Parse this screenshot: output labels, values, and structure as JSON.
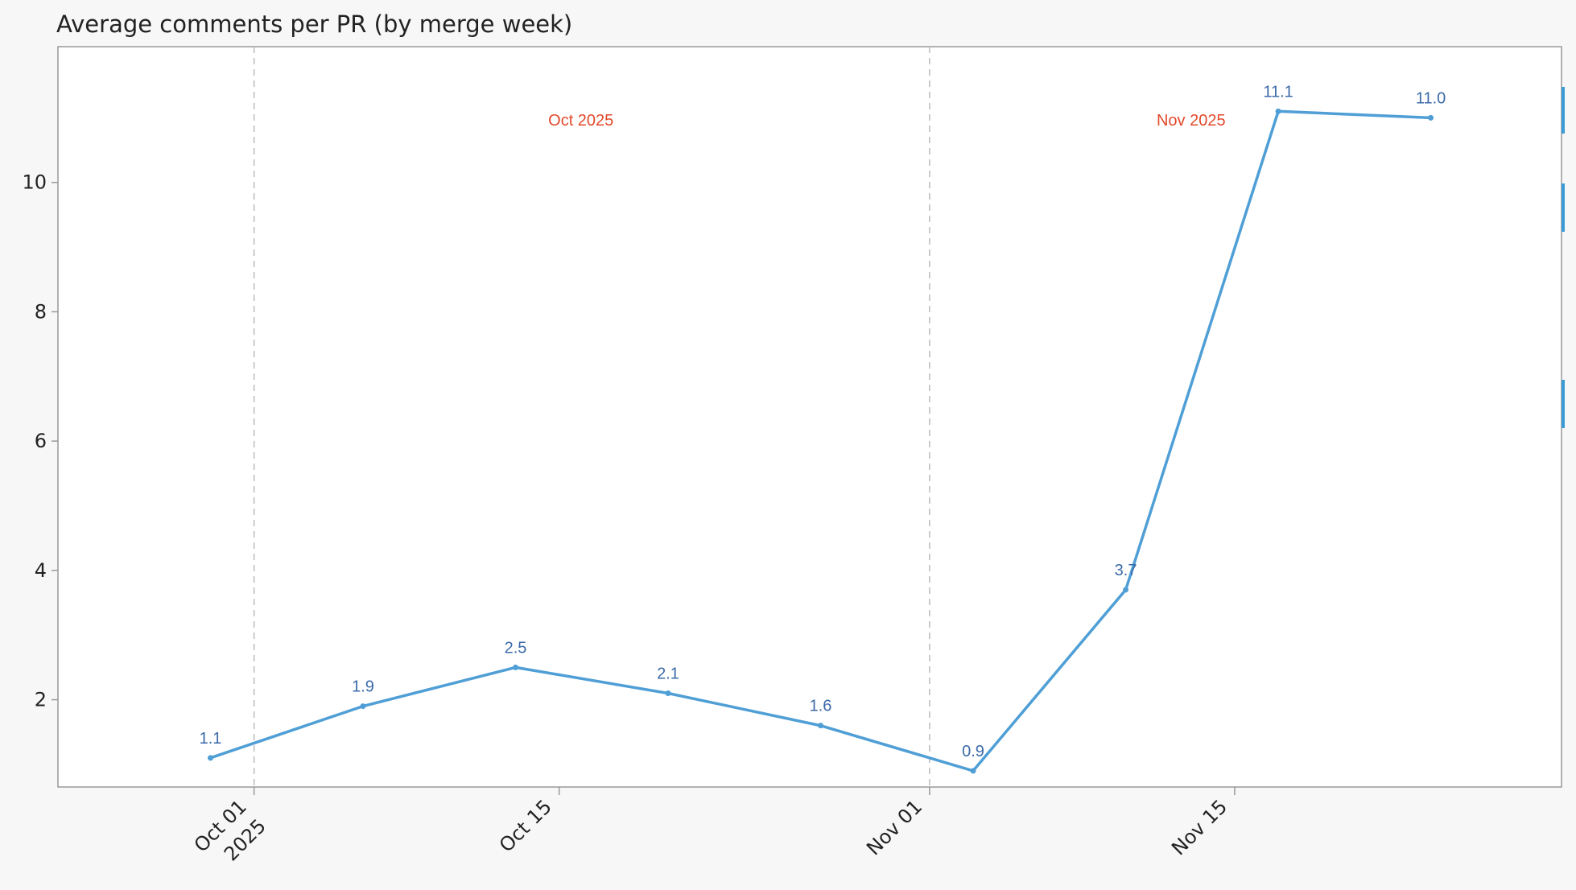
{
  "chart_data": {
    "type": "line",
    "title": "Average comments per PR (by merge week)",
    "xlabel": "",
    "ylabel": "",
    "x_type": "date",
    "xlim": [
      "2025-09-22",
      "2025-11-30"
    ],
    "ylim": [
      0.65,
      12.1
    ],
    "yticks": [
      2,
      4,
      6,
      8,
      10
    ],
    "xticks": [
      {
        "date": "2025-10-01",
        "label": "Oct 01",
        "sublabel": "2025"
      },
      {
        "date": "2025-10-15",
        "label": "Oct 15",
        "sublabel": ""
      },
      {
        "date": "2025-11-01",
        "label": "Nov 01",
        "sublabel": ""
      },
      {
        "date": "2025-11-15",
        "label": "Nov 15",
        "sublabel": ""
      }
    ],
    "month_boundaries": [
      "2025-10-01",
      "2025-11-01"
    ],
    "month_labels": [
      {
        "text": "Oct 2025",
        "date": "2025-10-16"
      },
      {
        "text": "Nov 2025",
        "date": "2025-11-13"
      }
    ],
    "series": [
      {
        "name": "",
        "x": [
          "2025-09-29",
          "2025-10-06",
          "2025-10-13",
          "2025-10-20",
          "2025-10-27",
          "2025-11-03",
          "2025-11-10",
          "2025-11-17",
          "2025-11-24"
        ],
        "values": [
          1.1,
          1.9,
          2.5,
          2.1,
          1.6,
          0.9,
          3.7,
          11.1,
          11.0
        ],
        "labels": [
          "1.1",
          "1.9",
          "2.5",
          "2.1",
          "1.6",
          "0.9",
          "3.7",
          "11.1",
          "11.0"
        ]
      }
    ],
    "grid": false,
    "legend": "none",
    "colors": {
      "line": "#4f9fd6",
      "data_label": "#3b6aa8",
      "month_label": "#e34a2c",
      "month_divider": "#bbbbbb",
      "axis": "#999999",
      "text": "#222222",
      "background": "#f7f7f7",
      "plot_background": "#ffffff"
    }
  }
}
